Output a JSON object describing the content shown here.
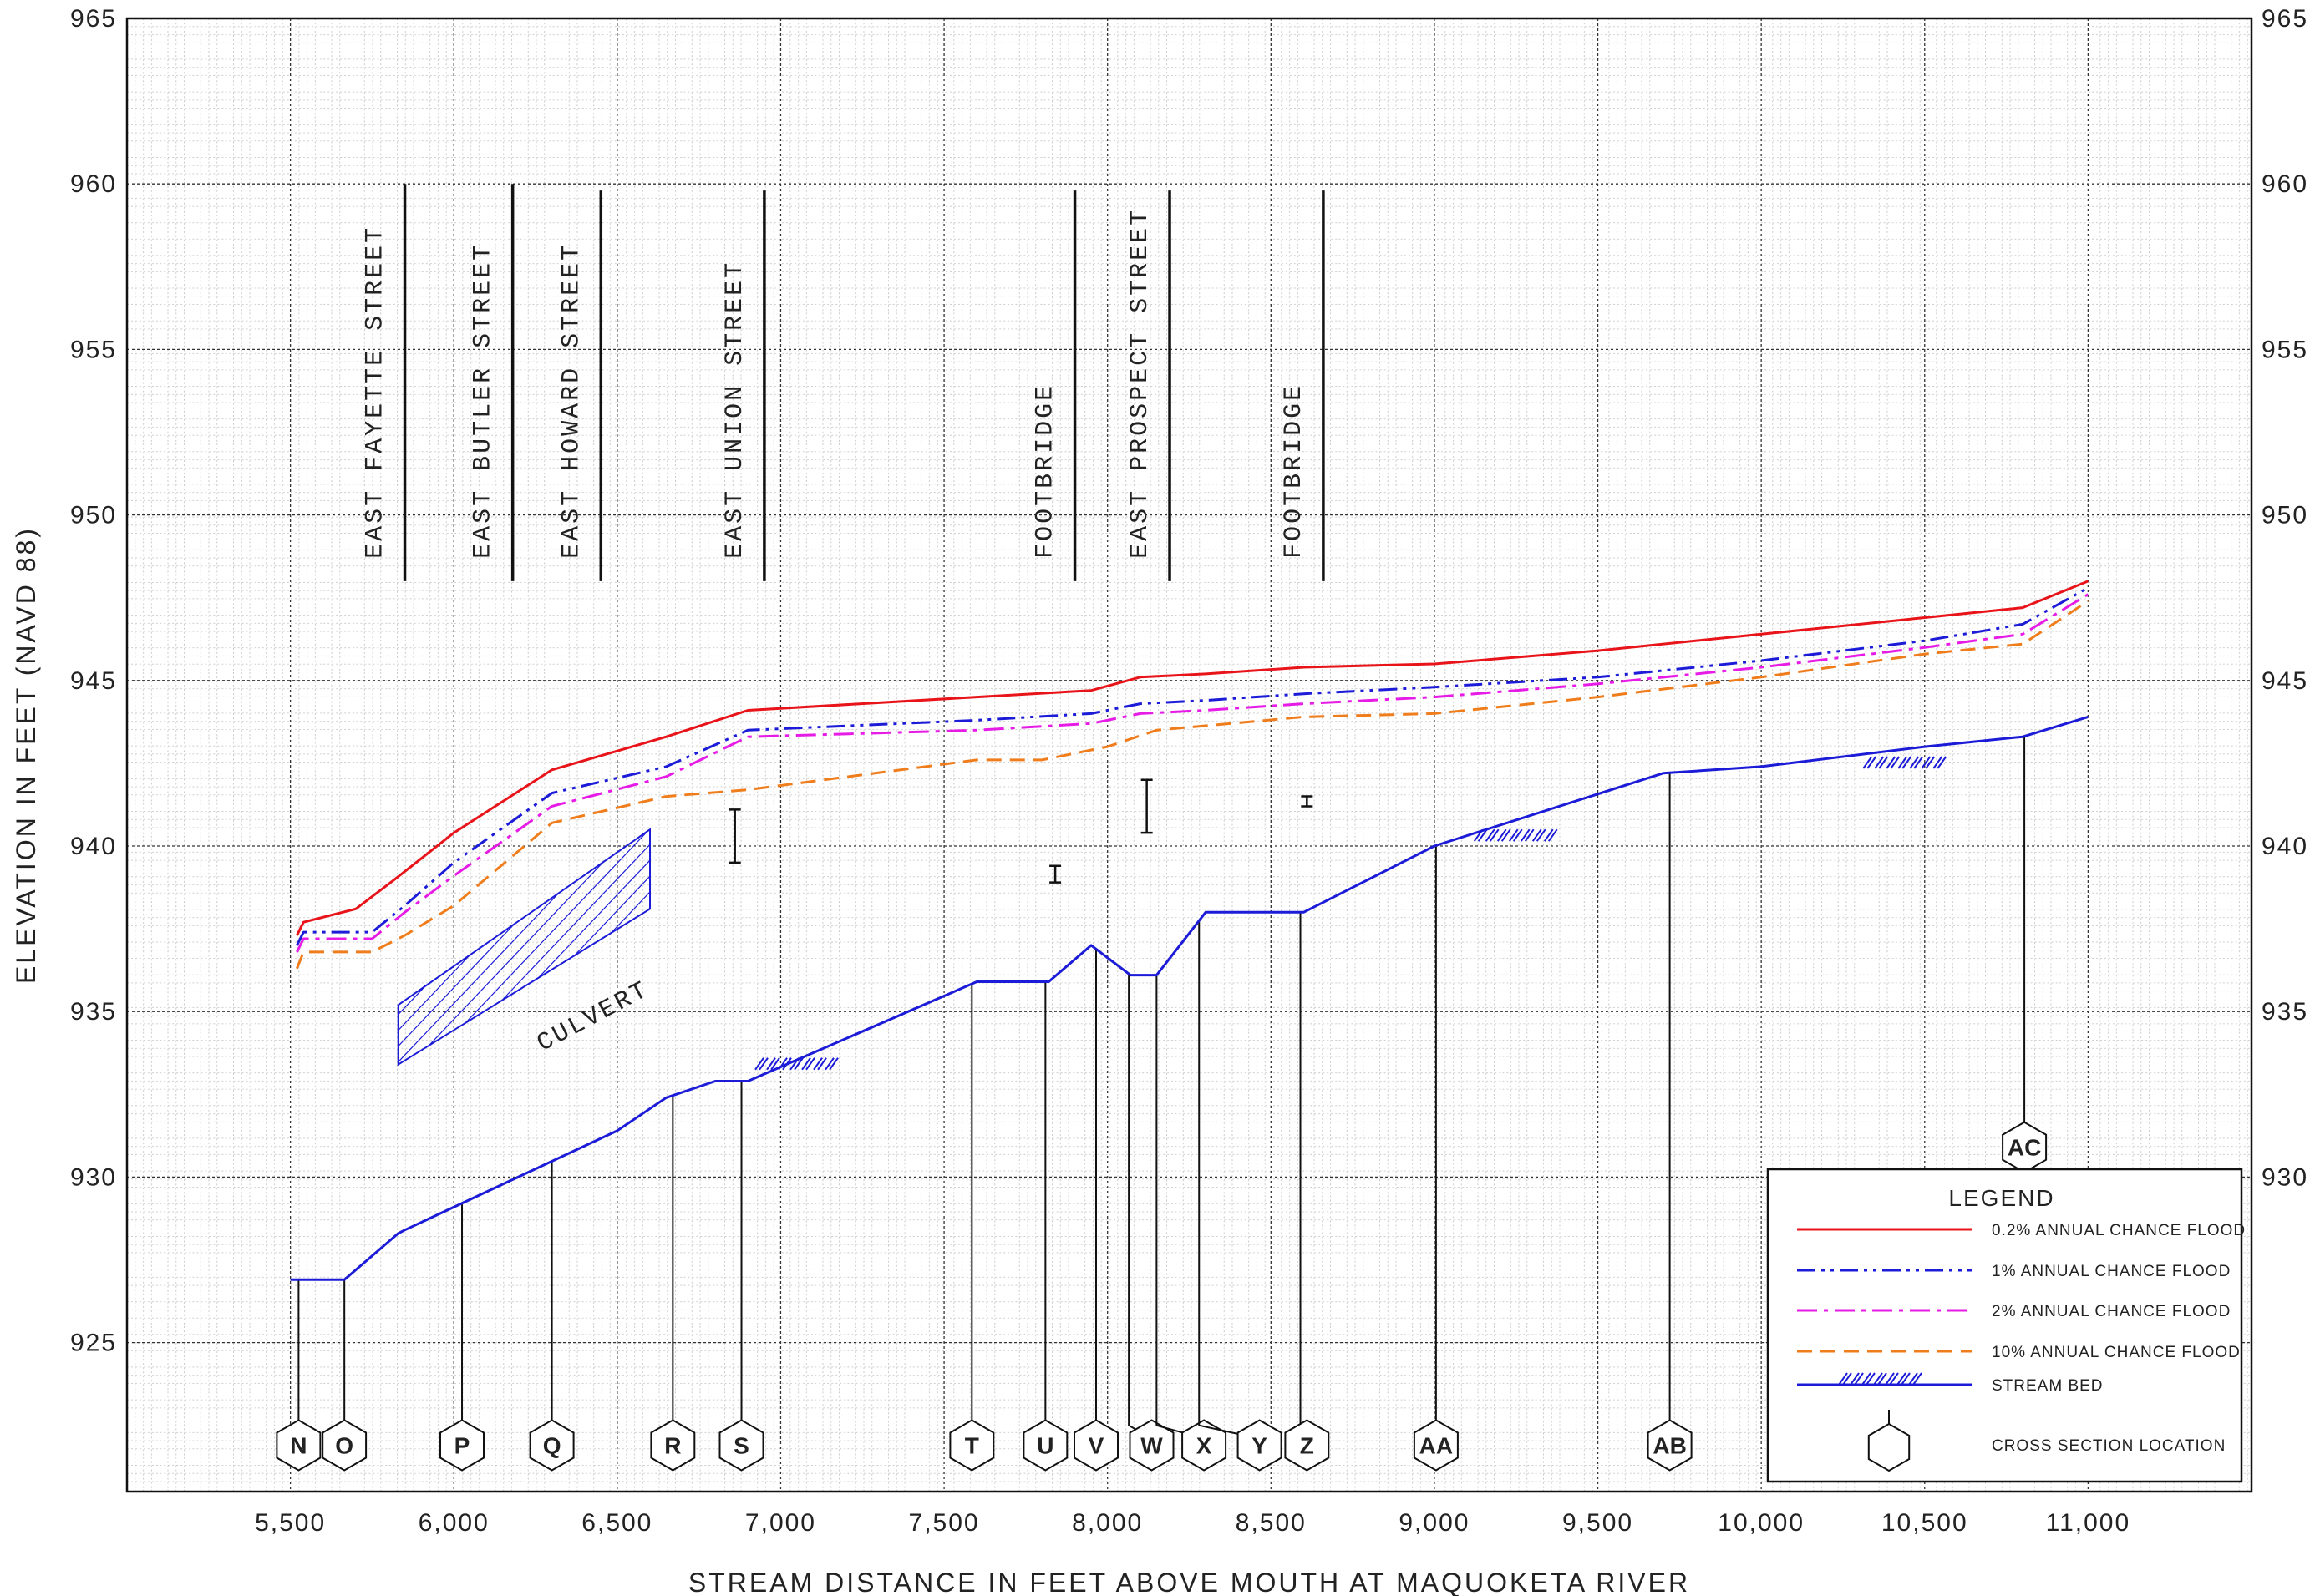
{
  "chart_data": {
    "type": "line",
    "title": "",
    "xlabel": "STREAM DISTANCE IN FEET ABOVE MOUTH AT MAQUOKETA RIVER",
    "ylabel": "ELEVATION IN FEET (NAVD 88)",
    "xlim": [
      5000,
      11500
    ],
    "ylim": [
      920.5,
      965
    ],
    "grid": true,
    "x_ticks": [
      5500,
      6000,
      6500,
      7000,
      7500,
      8000,
      8500,
      9000,
      9500,
      10000,
      10500,
      11000
    ],
    "x_tick_labels": [
      "5,500",
      "6,000",
      "6,500",
      "7,000",
      "7,500",
      "8,000",
      "8,500",
      "9,000",
      "9,500",
      "10,000",
      "10,500",
      "11,000"
    ],
    "y_ticks": [
      925,
      930,
      935,
      940,
      945,
      950,
      955,
      960,
      965
    ],
    "y_tick_labels": [
      "925",
      "930",
      "935",
      "940",
      "945",
      "950",
      "955",
      "960",
      "965"
    ],
    "y_tick_labels_right": [
      "930",
      "935",
      "940",
      "945",
      "950",
      "955",
      "960",
      "965"
    ],
    "legend": {
      "title": "LEGEND",
      "position": "bottom-right",
      "entries": [
        {
          "label": "0.2% ANNUAL CHANCE FLOOD",
          "series": "flood_02"
        },
        {
          "label": "1% ANNUAL CHANCE FLOOD",
          "series": "flood_1"
        },
        {
          "label": "2% ANNUAL CHANCE FLOOD",
          "series": "flood_2"
        },
        {
          "label": "10% ANNUAL CHANCE FLOOD",
          "series": "flood_10"
        },
        {
          "label": "STREAM BED",
          "series": "bed"
        },
        {
          "label": "CROSS SECTION LOCATION",
          "series": "xs"
        }
      ]
    },
    "series": [
      {
        "id": "flood_02",
        "color": "#e8141a",
        "dash": "solid",
        "x": [
          5520,
          5540,
          5700,
          5820,
          6000,
          6300,
          6650,
          6900,
          7600,
          7950,
          8100,
          8300,
          8600,
          9000,
          9500,
          10000,
          10500,
          10800,
          11000
        ],
        "y": [
          937.3,
          937.7,
          938.1,
          939.0,
          940.4,
          942.3,
          943.3,
          944.1,
          944.5,
          944.7,
          945.1,
          945.2,
          945.4,
          945.5,
          945.9,
          946.4,
          946.9,
          947.2,
          948.0
        ]
      },
      {
        "id": "flood_1",
        "color": "#1c1cd8",
        "dash": "dashdotdot",
        "x": [
          5520,
          5540,
          5750,
          5850,
          6000,
          6300,
          6650,
          6900,
          7600,
          7950,
          8100,
          8300,
          8600,
          9000,
          9500,
          10000,
          10500,
          10800,
          11000
        ],
        "y": [
          937.0,
          937.4,
          937.4,
          938.2,
          939.5,
          941.6,
          942.4,
          943.5,
          943.8,
          944.0,
          944.3,
          944.4,
          944.6,
          944.8,
          945.1,
          945.6,
          946.2,
          946.7,
          947.8
        ]
      },
      {
        "id": "flood_2",
        "color": "#e61ce6",
        "dash": "dashdot",
        "x": [
          5520,
          5540,
          5750,
          5850,
          6000,
          6300,
          6650,
          6900,
          7600,
          7950,
          8100,
          8300,
          8600,
          9000,
          9500,
          10000,
          10500,
          10800,
          11000
        ],
        "y": [
          936.8,
          937.2,
          937.2,
          938.0,
          939.1,
          941.2,
          942.1,
          943.3,
          943.5,
          943.7,
          944.0,
          944.1,
          944.3,
          944.5,
          944.9,
          945.4,
          946.0,
          946.4,
          947.6
        ]
      },
      {
        "id": "flood_10",
        "color": "#f07d1c",
        "dash": "dashed",
        "x": [
          5520,
          5540,
          5750,
          5850,
          6000,
          6300,
          6650,
          6900,
          7600,
          7800,
          8000,
          8150,
          8600,
          9000,
          9500,
          10000,
          10500,
          10800,
          11000
        ],
        "y": [
          936.3,
          936.8,
          936.8,
          937.3,
          938.2,
          940.7,
          941.5,
          941.7,
          942.6,
          942.6,
          943.0,
          943.5,
          943.9,
          944.0,
          944.5,
          945.1,
          945.8,
          946.1,
          947.4
        ]
      },
      {
        "id": "bed",
        "color": "#1c1cd8",
        "dash": "solid",
        "x": [
          5500,
          5665,
          5830,
          5850,
          6500,
          6650,
          6800,
          6900,
          7600,
          7820,
          7950,
          8070,
          8150,
          8300,
          8600,
          9000,
          9700,
          10000,
          10500,
          10800,
          11000
        ],
        "y": [
          926.9,
          926.9,
          928.3,
          928.4,
          931.4,
          932.4,
          932.9,
          932.9,
          935.9,
          935.9,
          937.0,
          936.1,
          936.1,
          938.0,
          938.0,
          940.0,
          942.2,
          942.4,
          943.0,
          943.3,
          943.9
        ]
      }
    ],
    "structures": [
      {
        "label": "EAST FAYETTE STREET",
        "x": 5850,
        "top": 960.0,
        "bottom": 948.0
      },
      {
        "label": "EAST BUTLER STREET",
        "x": 6180,
        "top": 960.0,
        "bottom": 948.0
      },
      {
        "label": "EAST HOWARD STREET",
        "x": 6450,
        "top": 959.8,
        "bottom": 948.0
      },
      {
        "label": "EAST UNION STREET",
        "x": 6950,
        "top": 959.8,
        "bottom": 948.0
      },
      {
        "label": "FOOTBRIDGE",
        "x": 7900,
        "top": 959.8,
        "bottom": 948.0
      },
      {
        "label": "EAST PROSPECT STREET",
        "x": 8190,
        "top": 959.8,
        "bottom": 948.0
      },
      {
        "label": "FOOTBRIDGE",
        "x": 8660,
        "top": 959.8,
        "bottom": 948.0
      }
    ],
    "annotations": [
      {
        "label": "CULVERT",
        "x": 6270,
        "y": 933.8
      }
    ],
    "culvert": {
      "x": [
        5830,
        5830,
        6600,
        6600
      ],
      "y": [
        933.4,
        935.2,
        940.5,
        938.1
      ]
    },
    "bridge_bars": [
      {
        "x": 6860,
        "low": 939.5,
        "high": 941.1
      },
      {
        "x": 7840,
        "low": 938.9,
        "high": 939.4
      },
      {
        "x": 8120,
        "low": 940.4,
        "high": 942.0
      },
      {
        "x": 8610,
        "low": 941.2,
        "high": 941.5
      }
    ],
    "bed_hatches": [
      {
        "x": 7050,
        "y": 933.7
      },
      {
        "x": 9250,
        "y": 940.6
      },
      {
        "x": 10440,
        "y": 942.8
      }
    ],
    "cross_sections": [
      {
        "label": "N",
        "x": 5525
      },
      {
        "label": "O",
        "x": 5665
      },
      {
        "label": "P",
        "x": 6025
      },
      {
        "label": "Q",
        "x": 6300
      },
      {
        "label": "R",
        "x": 6670
      },
      {
        "label": "S",
        "x": 6880
      },
      {
        "label": "T",
        "x": 7585
      },
      {
        "label": "U",
        "x": 7810
      },
      {
        "label": "V",
        "x": 7965
      },
      {
        "label": "W",
        "x": 8135,
        "leader_x": 8065
      },
      {
        "label": "X",
        "x": 8295,
        "leader_x": 8150
      },
      {
        "label": "Y",
        "x": 8465,
        "leader_x": 8280
      },
      {
        "label": "Z",
        "x": 8610,
        "leader_x": 8590
      },
      {
        "label": "AA",
        "x": 9005
      },
      {
        "label": "AB",
        "x": 9720
      },
      {
        "label": "AC",
        "x": 10805,
        "label_y": 930.9,
        "top_y": 943.3
      }
    ]
  }
}
